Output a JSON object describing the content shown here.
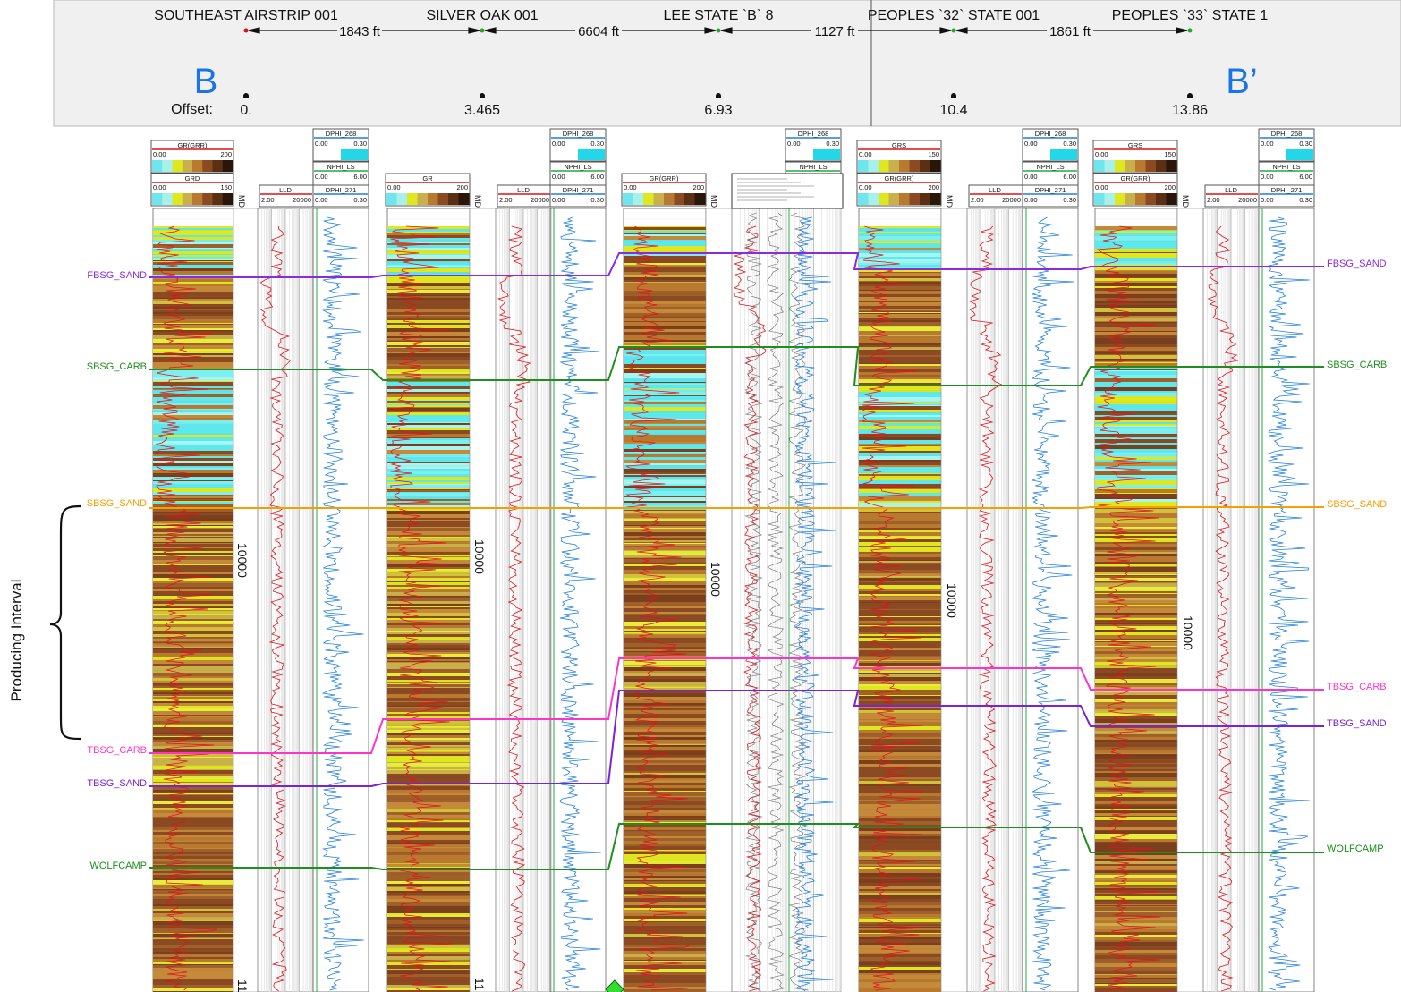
{
  "header": {
    "wells": [
      {
        "name": "SOUTHEAST AIRSTRIP 001",
        "offset": "0."
      },
      {
        "name": "SILVER OAK 001",
        "offset": "3.465"
      },
      {
        "name": "LEE STATE `B` 8",
        "offset": "6.93"
      },
      {
        "name": "PEOPLES `32` STATE 001",
        "offset": "10.4"
      },
      {
        "name": "PEOPLES `33` STATE 1",
        "offset": "13.86"
      }
    ],
    "spacings": [
      "1843 ft",
      "6604 ft",
      "1127 ft",
      "1861 ft"
    ],
    "offset_label": "Offset:",
    "section_start": "B",
    "section_end": "B’"
  },
  "producing_interval_label": "Producing Interval",
  "md_depth_label": "10000",
  "md_label": "MD",
  "truncated_depth_label": "11",
  "tracks": [
    {
      "gr": [
        {
          "name": "GR(GRR)",
          "min": "0.00",
          "max": "200"
        },
        {
          "name": "GRD",
          "min": "0.00",
          "max": "150"
        }
      ],
      "lld": {
        "name": "LLD",
        "min": "2.00",
        "max": "20000"
      },
      "por": [
        {
          "name": "DPHI_268",
          "min": "0.00",
          "max": "0.30"
        },
        {
          "name": "NPHI_LS",
          "min": "0.00",
          "max": "6.00"
        },
        {
          "name": "DPHI_271",
          "min": "0.00",
          "max": "0.30"
        }
      ]
    },
    {
      "gr": [
        {
          "name": "GR",
          "min": "0.00",
          "max": "200"
        }
      ],
      "lld": {
        "name": "LLD",
        "min": "2.00",
        "max": "20000"
      },
      "por": [
        {
          "name": "DPHI_268",
          "min": "0.00",
          "max": "0.30"
        },
        {
          "name": "NPHI_LS",
          "min": "0.00",
          "max": "6.00"
        },
        {
          "name": "DPHI_271",
          "min": "0.00",
          "max": "0.30"
        }
      ]
    },
    {
      "gr": [
        {
          "name": "GR(GRR)",
          "min": "0.00",
          "max": "200"
        }
      ],
      "lld": null,
      "por": [
        {
          "name": "DPHI_268",
          "min": "0.00",
          "max": "0.30"
        },
        {
          "name": "NPHI_LS",
          "min": "",
          "max": ""
        }
      ]
    },
    {
      "gr": [
        {
          "name": "GRS",
          "min": "0.00",
          "max": "150"
        },
        {
          "name": "GR(GRR)",
          "min": "0.00",
          "max": "200"
        }
      ],
      "lld": {
        "name": "LLD",
        "min": "2.00",
        "max": "20000"
      },
      "por": [
        {
          "name": "DPHI_268",
          "min": "0.00",
          "max": "0.30"
        },
        {
          "name": "NPHI_LS",
          "min": "0.00",
          "max": "6.00"
        },
        {
          "name": "DPHI_271",
          "min": "0.00",
          "max": "0.30"
        }
      ]
    },
    {
      "gr": [
        {
          "name": "GRS",
          "min": "0.00",
          "max": "150"
        },
        {
          "name": "GR(GRR)",
          "min": "0.00",
          "max": "200"
        }
      ],
      "lld": {
        "name": "LLD",
        "min": "2.00",
        "max": "20000"
      },
      "por": [
        {
          "name": "DPHI_268",
          "min": "0.00",
          "max": "0.30"
        },
        {
          "name": "NPHI_LS",
          "min": "0.00",
          "max": "6.00"
        },
        {
          "name": "DPHI_271",
          "min": "0.00",
          "max": "0.30"
        }
      ]
    }
  ],
  "formations": [
    {
      "name": "FBSG_SAND",
      "color": "#8a2be2"
    },
    {
      "name": "SBSG_CARB",
      "color": "#1e8f1e"
    },
    {
      "name": "SBSG_SAND",
      "color": "#f5a000"
    },
    {
      "name": "TBSG_CARB",
      "color": "#ff33cc"
    },
    {
      "name": "TBSG_SAND",
      "color": "#7b22d6"
    },
    {
      "name": "WOLFCAMP",
      "color": "#1e8f1e"
    }
  ],
  "colors": {
    "gr_curve": "#e0141c",
    "porosity_curve": "#1f7fe0",
    "shale_dark": "#8b4a22",
    "shale_mid": "#c48a3a",
    "sand_yellow": "#dfe81e",
    "clean_cyan": "#5de8ee",
    "section_letter": "#1a73e8",
    "header_bg": "#f0f0f0"
  }
}
